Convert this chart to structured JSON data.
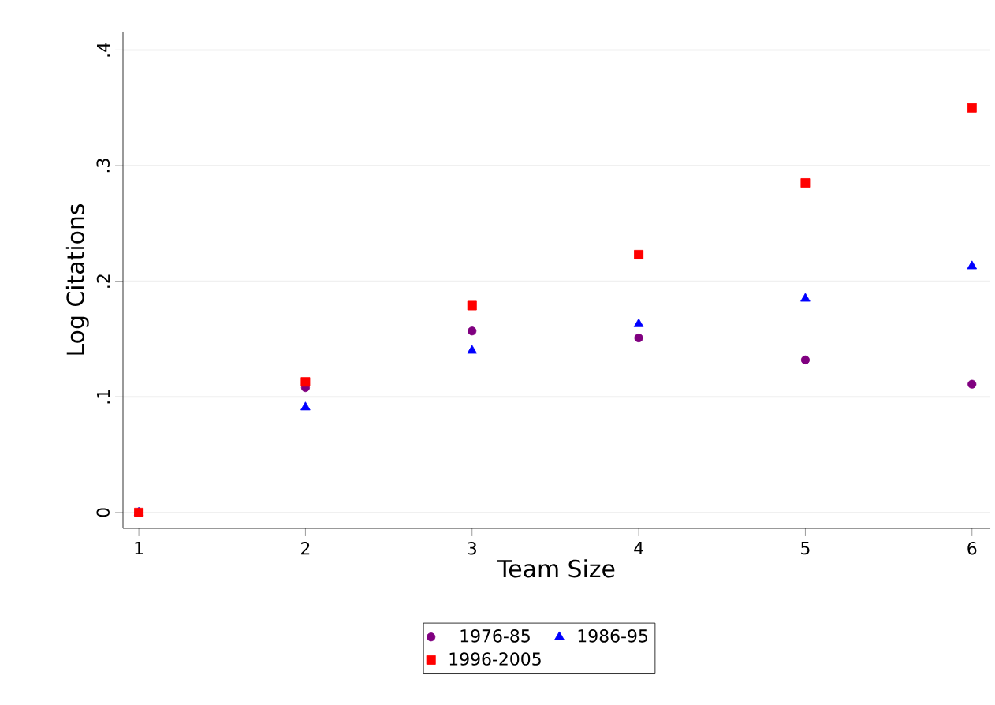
{
  "chart_data": {
    "type": "scatter",
    "xlabel": "Team Size",
    "ylabel": "Log Citations",
    "x": [
      1,
      2,
      3,
      4,
      5,
      6
    ],
    "series": [
      {
        "name": "1976-85",
        "color": "#800080",
        "marker": "circle",
        "values": [
          0,
          0.108,
          0.157,
          0.151,
          0.132,
          0.111
        ]
      },
      {
        "name": "1986-95",
        "color": "#0000ff",
        "marker": "triangle",
        "values": [
          0,
          0.091,
          0.14,
          0.163,
          0.185,
          0.213
        ]
      },
      {
        "name": "1996-2005",
        "color": "#ff0000",
        "marker": "square",
        "values": [
          0,
          0.113,
          0.179,
          0.223,
          0.285,
          0.35
        ]
      }
    ],
    "xlim": [
      0.905,
      6.11
    ],
    "ylim": [
      -0.0137,
      0.416
    ],
    "xticks": [
      1,
      2,
      3,
      4,
      5,
      6
    ],
    "yticks": [
      {
        "value": 0,
        "label": "0"
      },
      {
        "value": 0.1,
        "label": ".1"
      },
      {
        "value": 0.2,
        "label": ".2"
      },
      {
        "value": 0.3,
        "label": ".3"
      },
      {
        "value": 0.4,
        "label": ".4"
      }
    ],
    "grid": "y",
    "legend": "bottom"
  }
}
